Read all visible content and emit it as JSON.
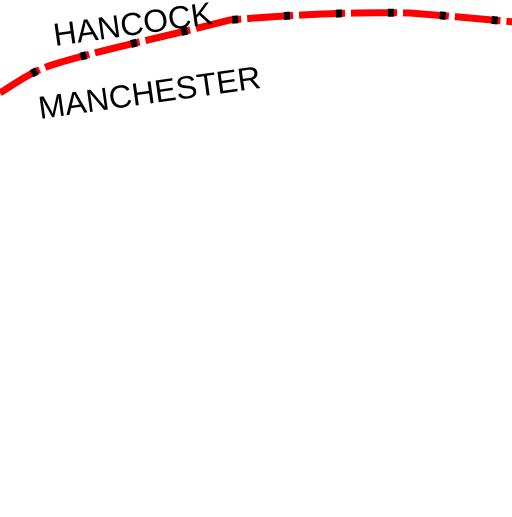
{
  "map": {
    "labels": {
      "upper": "HANCOCK",
      "lower": "MANCHESTER"
    },
    "boundary": {
      "line_color": "#ff0000",
      "tick_color": "#000000",
      "style": "dashed boundary with black tick marks"
    },
    "background": "#ffffff"
  }
}
